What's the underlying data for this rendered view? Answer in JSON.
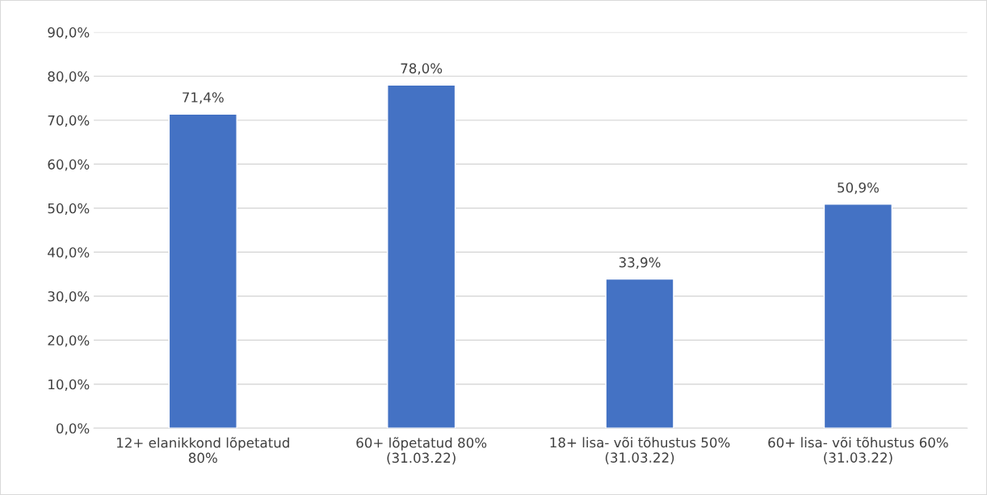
{
  "chart_data": {
    "type": "bar",
    "categories": [
      "12+ elanikkond lõpetatud\n80%",
      "60+ lõpetatud 80%\n(31.03.22)",
      "18+ lisa- või tõhustus 50%\n(31.03.22)",
      "60+ lisa- või tõhustus 60%\n(31.03.22)"
    ],
    "values": [
      71.4,
      78.0,
      33.9,
      50.9
    ],
    "value_labels": [
      "71,4%",
      "78,0%",
      "33,9%",
      "50,9%"
    ],
    "color": "#4472c4",
    "ylim": [
      0,
      90
    ],
    "yticks": [
      {
        "value": 0,
        "label": "0,0%"
      },
      {
        "value": 10,
        "label": "10,0%"
      },
      {
        "value": 20,
        "label": "20,0%"
      },
      {
        "value": 30,
        "label": "30,0%"
      },
      {
        "value": 40,
        "label": "40,0%"
      },
      {
        "value": 50,
        "label": "50,0%"
      },
      {
        "value": 60,
        "label": "60,0%"
      },
      {
        "value": 70,
        "label": "70,0%"
      },
      {
        "value": 80,
        "label": "80,0%"
      },
      {
        "value": 90,
        "label": "90,0%"
      }
    ],
    "grid": "y"
  }
}
